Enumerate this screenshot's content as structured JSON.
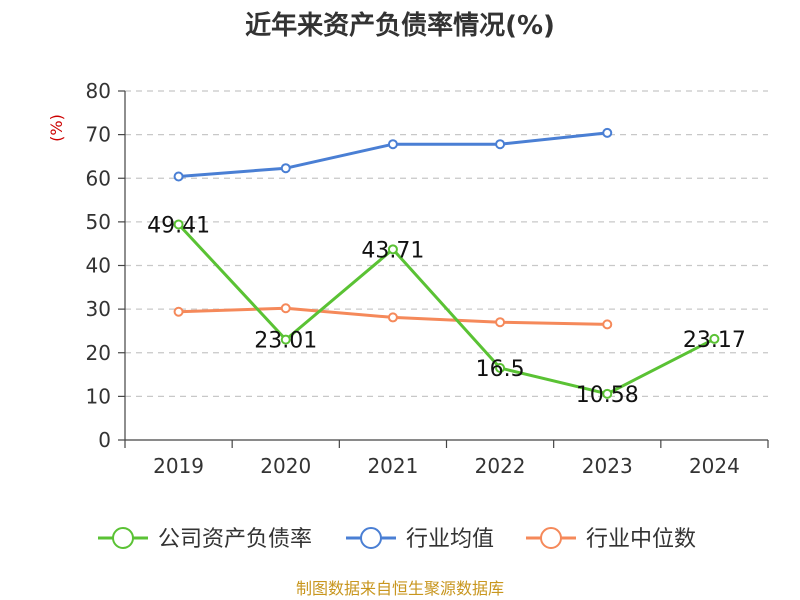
{
  "chart_data": {
    "type": "line",
    "title": "近年来资产负债率情况(%)",
    "ylabel": "(%)",
    "ylim": [
      0,
      80
    ],
    "yticks": [
      "0",
      "10",
      "20",
      "30",
      "40",
      "50",
      "60",
      "70",
      "80"
    ],
    "categories": [
      "2019",
      "2020",
      "2021",
      "2022",
      "2023",
      "2024"
    ],
    "grid": true,
    "legend_position": "bottom",
    "series": [
      {
        "name": "公司资产负债率",
        "color": "#5ac234",
        "values": [
          49.41,
          23.01,
          43.71,
          16.5,
          10.58,
          23.17
        ],
        "labels": [
          "49.41",
          "23.01",
          "43.71",
          "16.5",
          "10.58",
          "23.17"
        ]
      },
      {
        "name": "行业均值",
        "color": "#4a7fd4",
        "values": [
          60.4,
          62.3,
          67.8,
          67.8,
          70.4,
          null
        ]
      },
      {
        "name": "行业中位数",
        "color": "#f5895a",
        "values": [
          29.4,
          30.2,
          28.1,
          27.0,
          26.5,
          null
        ]
      }
    ]
  },
  "source": "制图数据来自恒生聚源数据库"
}
